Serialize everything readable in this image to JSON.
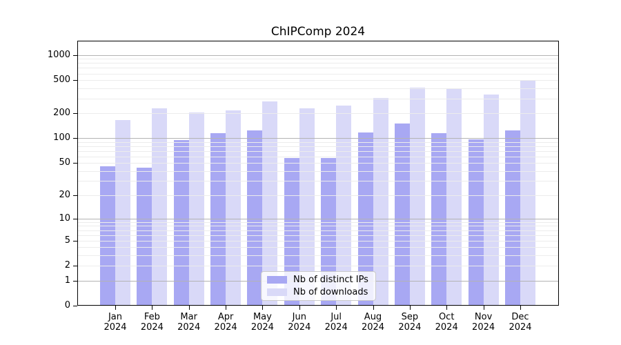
{
  "chart_data": {
    "type": "bar",
    "title": "ChIPComp 2024",
    "categories": [
      "Jan 2024",
      "Feb 2024",
      "Mar 2024",
      "Apr 2024",
      "May 2024",
      "Jun 2024",
      "Jul 2024",
      "Aug 2024",
      "Sep 2024",
      "Oct 2024",
      "Nov 2024",
      "Dec 2024"
    ],
    "series": [
      {
        "name": "Nb of distinct IPs",
        "color": "#a8a8f3",
        "values": [
          46,
          44,
          95,
          116,
          124,
          57,
          58,
          117,
          150,
          116,
          97,
          124
        ]
      },
      {
        "name": "Nb of downloads",
        "color": "#d9d9f8",
        "values": [
          165,
          228,
          206,
          217,
          278,
          229,
          246,
          304,
          404,
          389,
          334,
          489
        ]
      }
    ],
    "y_ticks": [
      0,
      1,
      2,
      5,
      10,
      20,
      50,
      100,
      200,
      500,
      1000
    ],
    "y_scale": "log10(value+1)",
    "ylim": [
      0,
      1480
    ],
    "xlabel": "",
    "ylabel": "",
    "grid": "horizontal, minor 2-9 per decade, major at 1/10/100/1000",
    "legend_position": "inside-bottom-center",
    "frame_color": "#000000",
    "major_grid_color": "#b3b3b3",
    "minor_grid_color": "#ececec"
  }
}
